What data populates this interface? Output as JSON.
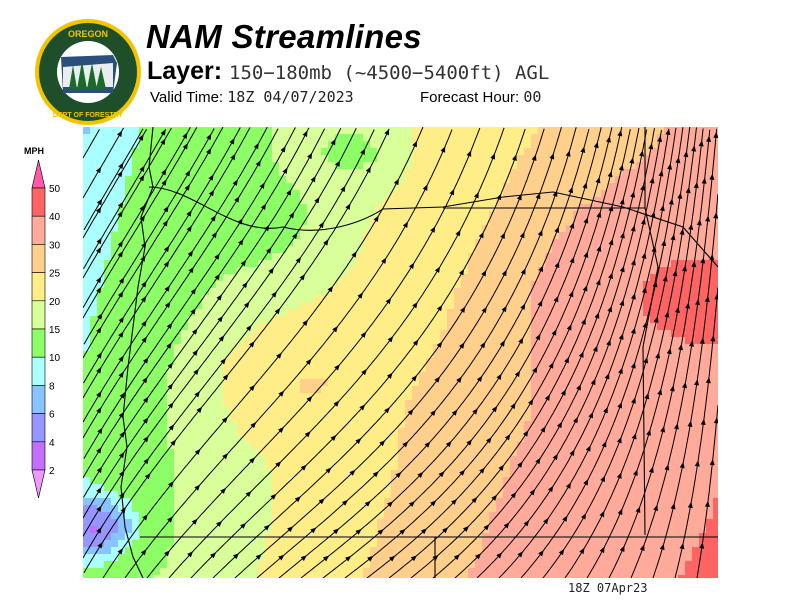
{
  "header": {
    "title": "NAM Streamlines",
    "layer_label": "Layer:",
    "layer_value": "150−180mb (~4500−5400ft) AGL",
    "valid_label": "Valid Time:",
    "valid_value": "18Z 04/07/2023",
    "forecast_label": "Forecast Hour:",
    "forecast_value": "00"
  },
  "logo": {
    "text_top": "OREGON",
    "text_bottom": "DEPARTMENT OF FORESTRY"
  },
  "legend": {
    "unit": "MPH",
    "labels": [
      "50",
      "40",
      "30",
      "25",
      "20",
      "15",
      "10",
      "8",
      "6",
      "4",
      "2"
    ],
    "colors": [
      "#ff6464",
      "#ffaa9a",
      "#ffd08c",
      "#ffee88",
      "#d8ff9a",
      "#8cff66",
      "#aaffff",
      "#88c4ff",
      "#9696ff",
      "#c46eff"
    ],
    "over_color": "#ff5aaa",
    "under_color": "#ee99ff"
  },
  "footer": {
    "timestamp": "18Z 07Apr23"
  }
}
